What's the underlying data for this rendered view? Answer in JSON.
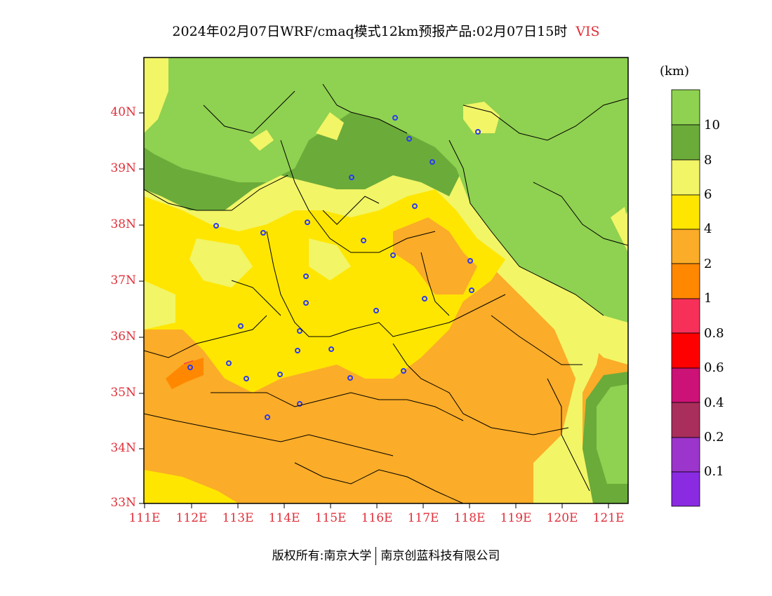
{
  "title": "2024年02月07日WRF/cmaq模式12km预报产品:02月07日15时",
  "variable": "VIS",
  "unit": "(km)",
  "latitude_labels": [
    "40N",
    "39N",
    "38N",
    "37N",
    "36N",
    "35N",
    "34N",
    "33N"
  ],
  "longitude_labels": [
    "111E",
    "112E",
    "113E",
    "114E",
    "115E",
    "116E",
    "117E",
    "118E",
    "119E",
    "120E",
    "121E"
  ],
  "legend": {
    "labels": [
      "10",
      "8",
      "6",
      "4",
      "2",
      "1",
      "0.8",
      "0.6",
      "0.4",
      "0.2",
      "0.1"
    ],
    "colors": [
      "#8fd150",
      "#6bab3a",
      "#f2f566",
      "#ffe600",
      "#fbac28",
      "#ff8800",
      "#f7305a",
      "#ff0000",
      "#cc1276",
      "#a92e5c",
      "#9b35cc",
      "#8a2be2"
    ]
  },
  "colors": {
    "vis_gt10": "#8fd150",
    "vis_8_10": "#6bab3a",
    "vis_6_8": "#f2f566",
    "vis_4_6": "#ffe600",
    "vis_2_4": "#fbac28",
    "vis_1_2": "#ff8800",
    "vis_08_1": "#f7305a",
    "station_marker": "#2b3bef",
    "axis_label": "#e0303a"
  },
  "footer": {
    "copyright": "版权所有:南京大学",
    "company": "南京创蓝科技有限公司"
  }
}
